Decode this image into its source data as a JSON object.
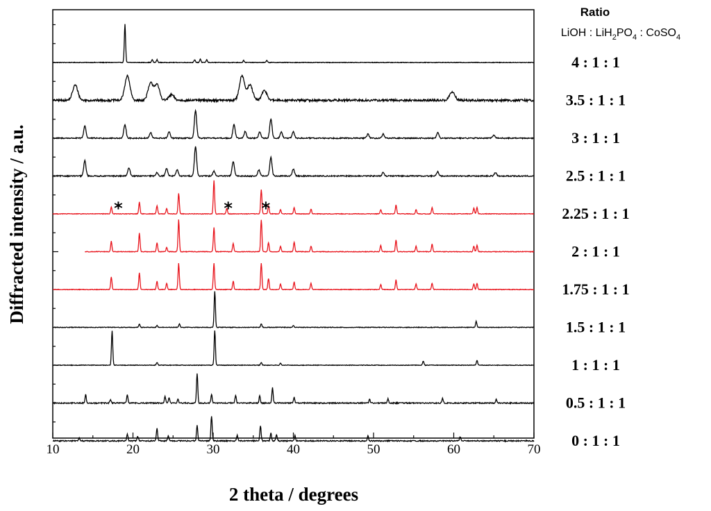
{
  "chart_data": {
    "type": "line",
    "xlabel": "2 theta / degrees",
    "ylabel": "Diffracted intensity / a.u.",
    "xlim": [
      10,
      70
    ],
    "xticks": [
      "10",
      "20",
      "30",
      "40",
      "50",
      "60",
      "70"
    ],
    "legend": {
      "title": "Ratio",
      "formula": [
        "LiOH : LiH",
        "2",
        "PO",
        "4",
        " : CoSO",
        "4"
      ],
      "placement": "right"
    },
    "highlight_color": "#e8141c",
    "default_color": "#000000",
    "annotation": "*",
    "annotations_x": [
      18.0,
      31.7,
      36.4
    ],
    "annotated_series": "2.25 : 1 : 1",
    "series": [
      {
        "name": "4 : 1 : 1",
        "color": "#000000",
        "x_start": 10,
        "peaks": [
          [
            19.0,
            55
          ],
          [
            22.4,
            4
          ],
          [
            23.0,
            4
          ],
          [
            27.7,
            4
          ],
          [
            28.4,
            5
          ],
          [
            29.2,
            4
          ],
          [
            33.8,
            3
          ],
          [
            36.7,
            3
          ]
        ]
      },
      {
        "name": "3.5 : 1 : 1",
        "color": "#000000",
        "x_start": 10,
        "peaks": [
          [
            12.8,
            22
          ],
          [
            19.3,
            35
          ],
          [
            22.2,
            24
          ],
          [
            23.0,
            22
          ],
          [
            24.8,
            8
          ],
          [
            33.6,
            36
          ],
          [
            34.6,
            22
          ],
          [
            36.4,
            14
          ],
          [
            59.8,
            12
          ]
        ]
      },
      {
        "name": "3 : 1 : 1",
        "color": "#000000",
        "x_start": 10,
        "peaks": [
          [
            14.0,
            18
          ],
          [
            19.0,
            20
          ],
          [
            22.2,
            8
          ],
          [
            24.5,
            9
          ],
          [
            27.8,
            40
          ],
          [
            32.6,
            20
          ],
          [
            34.0,
            10
          ],
          [
            35.8,
            9
          ],
          [
            37.2,
            28
          ],
          [
            38.5,
            9
          ],
          [
            40.0,
            9
          ],
          [
            49.3,
            6
          ],
          [
            51.2,
            6
          ],
          [
            58.0,
            8
          ],
          [
            65.0,
            5
          ]
        ]
      },
      {
        "name": "2.5 : 1 : 1",
        "color": "#000000",
        "x_start": 10,
        "peaks": [
          [
            14.0,
            22
          ],
          [
            19.5,
            12
          ],
          [
            23.0,
            5
          ],
          [
            24.2,
            11
          ],
          [
            25.5,
            9
          ],
          [
            27.8,
            42
          ],
          [
            30.1,
            7
          ],
          [
            32.5,
            21
          ],
          [
            35.7,
            9
          ],
          [
            37.2,
            27
          ],
          [
            40.0,
            10
          ],
          [
            51.2,
            5
          ],
          [
            58.0,
            6
          ],
          [
            65.2,
            5
          ]
        ]
      },
      {
        "name": "2.25 : 1 : 1",
        "color": "#e8141c",
        "x_start": 10,
        "peaks": [
          [
            17.3,
            10
          ],
          [
            20.8,
            17
          ],
          [
            23.0,
            12
          ],
          [
            24.2,
            8
          ],
          [
            25.7,
            30
          ],
          [
            30.1,
            48
          ],
          [
            31.7,
            8
          ],
          [
            36.0,
            35
          ],
          [
            36.9,
            12
          ],
          [
            38.4,
            6
          ],
          [
            40.1,
            9
          ],
          [
            42.2,
            7
          ],
          [
            50.9,
            6
          ],
          [
            52.8,
            13
          ],
          [
            55.3,
            6
          ],
          [
            57.3,
            9
          ],
          [
            62.5,
            8
          ],
          [
            62.9,
            9
          ]
        ]
      },
      {
        "name": "2 : 1 : 1",
        "color": "#e8141c",
        "x_start": 14,
        "peaks": [
          [
            17.3,
            15
          ],
          [
            20.8,
            27
          ],
          [
            23.0,
            13
          ],
          [
            24.2,
            6
          ],
          [
            25.7,
            46
          ],
          [
            30.1,
            35
          ],
          [
            32.5,
            12
          ],
          [
            36.0,
            46
          ],
          [
            36.9,
            13
          ],
          [
            38.4,
            8
          ],
          [
            40.1,
            14
          ],
          [
            42.2,
            8
          ],
          [
            50.9,
            9
          ],
          [
            52.8,
            17
          ],
          [
            55.3,
            8
          ],
          [
            57.3,
            11
          ],
          [
            62.5,
            8
          ],
          [
            62.9,
            9
          ]
        ]
      },
      {
        "name": "1.75 : 1 : 1",
        "color": "#e8141c",
        "x_start": 10,
        "peaks": [
          [
            17.3,
            18
          ],
          [
            20.8,
            24
          ],
          [
            23.0,
            12
          ],
          [
            24.2,
            9
          ],
          [
            25.7,
            38
          ],
          [
            30.1,
            38
          ],
          [
            32.5,
            12
          ],
          [
            36.0,
            38
          ],
          [
            36.9,
            16
          ],
          [
            38.4,
            8
          ],
          [
            40.1,
            11
          ],
          [
            42.2,
            9
          ],
          [
            50.9,
            7
          ],
          [
            52.8,
            14
          ],
          [
            55.3,
            8
          ],
          [
            57.3,
            9
          ],
          [
            62.5,
            8
          ],
          [
            62.9,
            9
          ]
        ]
      },
      {
        "name": "1.5 : 1 : 1",
        "color": "#000000",
        "x_start": 10,
        "peaks": [
          [
            20.8,
            5
          ],
          [
            23.0,
            3
          ],
          [
            25.8,
            5
          ],
          [
            30.2,
            52
          ],
          [
            36.0,
            5
          ],
          [
            40.0,
            3
          ],
          [
            62.8,
            9
          ]
        ]
      },
      {
        "name": "1 : 1 : 1",
        "color": "#000000",
        "x_start": 10,
        "peaks": [
          [
            17.4,
            50
          ],
          [
            23.0,
            4
          ],
          [
            30.2,
            50
          ],
          [
            36.0,
            4
          ],
          [
            38.4,
            3
          ],
          [
            56.2,
            6
          ],
          [
            62.9,
            7
          ]
        ]
      },
      {
        "name": "0.5 : 1 : 1",
        "color": "#000000",
        "x_start": 10,
        "peaks": [
          [
            14.1,
            12
          ],
          [
            17.2,
            5
          ],
          [
            19.3,
            12
          ],
          [
            24.0,
            9
          ],
          [
            24.5,
            8
          ],
          [
            25.6,
            6
          ],
          [
            28.0,
            42
          ],
          [
            29.8,
            12
          ],
          [
            32.8,
            11
          ],
          [
            35.8,
            10
          ],
          [
            37.4,
            22
          ],
          [
            40.1,
            8
          ],
          [
            49.5,
            6
          ],
          [
            51.8,
            6
          ],
          [
            58.6,
            7
          ],
          [
            65.3,
            5
          ]
        ]
      },
      {
        "name": "0 : 1 : 1",
        "color": "#000000",
        "x_start": 10,
        "peaks": [
          [
            13.3,
            4
          ],
          [
            19.3,
            10
          ],
          [
            20.6,
            7
          ],
          [
            23.0,
            18
          ],
          [
            24.4,
            7
          ],
          [
            28.0,
            22
          ],
          [
            29.8,
            36
          ],
          [
            33.0,
            8
          ],
          [
            35.9,
            22
          ],
          [
            37.2,
            11
          ],
          [
            37.9,
            9
          ],
          [
            40.2,
            8
          ],
          [
            49.3,
            7
          ],
          [
            60.8,
            6
          ]
        ]
      }
    ]
  }
}
